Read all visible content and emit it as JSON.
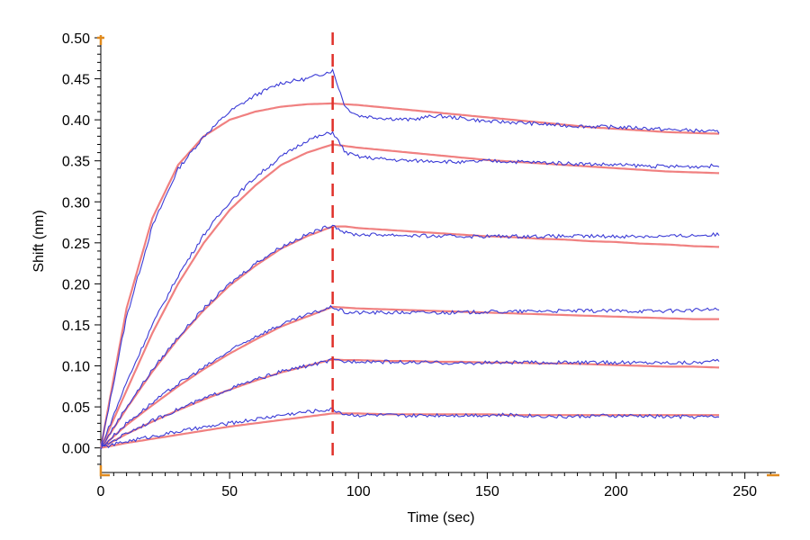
{
  "chart_data": {
    "type": "line",
    "xlabel": "Time (sec)",
    "ylabel": "Shift (nm)",
    "xlim": [
      0,
      262
    ],
    "ylim": [
      -0.03,
      0.5
    ],
    "xticks": [
      0,
      50,
      100,
      150,
      200,
      250
    ],
    "yticks": [
      0.0,
      0.05,
      0.1,
      0.15,
      0.2,
      0.25,
      0.3,
      0.35,
      0.4,
      0.45,
      0.5
    ],
    "ytick_labels": [
      "0.00",
      "0.05",
      "0.10",
      "0.15",
      "0.20",
      "0.25",
      "0.30",
      "0.35",
      "0.40",
      "0.45",
      "0.50"
    ],
    "xtick_labels": [
      "0",
      "50",
      "100",
      "150",
      "200",
      "250"
    ],
    "marker_line_x": 90,
    "grid": false,
    "colors": {
      "measured": "#3b3bd6",
      "fit": "#f08080",
      "marker": "#e0302a",
      "axis_corner": "#e08a1e"
    },
    "series": [
      {
        "x": [
          0,
          10,
          20,
          30,
          40,
          50,
          60,
          70,
          80,
          90,
          95,
          100,
          110,
          120,
          130,
          140,
          150,
          160,
          170,
          180,
          190,
          200,
          210,
          220,
          230,
          240
        ],
        "measured": [
          0.0,
          0.16,
          0.27,
          0.34,
          0.38,
          0.41,
          0.43,
          0.445,
          0.45,
          0.46,
          0.415,
          0.405,
          0.402,
          0.4,
          0.405,
          0.402,
          0.398,
          0.397,
          0.395,
          0.393,
          0.392,
          0.391,
          0.39,
          0.388,
          0.387,
          0.385
        ],
        "fit": [
          0.0,
          0.17,
          0.28,
          0.345,
          0.38,
          0.4,
          0.41,
          0.416,
          0.419,
          0.42,
          0.419,
          0.418,
          0.415,
          0.412,
          0.409,
          0.406,
          0.403,
          0.4,
          0.397,
          0.394,
          0.391,
          0.389,
          0.387,
          0.385,
          0.384,
          0.383
        ]
      },
      {
        "x": [
          0,
          10,
          20,
          30,
          40,
          50,
          60,
          70,
          80,
          90,
          95,
          100,
          110,
          120,
          130,
          140,
          150,
          160,
          170,
          180,
          190,
          200,
          210,
          220,
          230,
          240
        ],
        "measured": [
          0.0,
          0.08,
          0.15,
          0.21,
          0.26,
          0.3,
          0.33,
          0.355,
          0.375,
          0.385,
          0.36,
          0.355,
          0.352,
          0.35,
          0.35,
          0.348,
          0.35,
          0.349,
          0.348,
          0.347,
          0.346,
          0.345,
          0.344,
          0.343,
          0.343,
          0.344
        ],
        "fit": [
          0.0,
          0.07,
          0.14,
          0.2,
          0.25,
          0.29,
          0.32,
          0.345,
          0.36,
          0.37,
          0.368,
          0.366,
          0.363,
          0.36,
          0.357,
          0.354,
          0.351,
          0.349,
          0.347,
          0.345,
          0.343,
          0.341,
          0.339,
          0.337,
          0.336,
          0.335
        ]
      },
      {
        "x": [
          0,
          10,
          20,
          30,
          40,
          50,
          60,
          70,
          80,
          90,
          95,
          100,
          110,
          120,
          130,
          140,
          150,
          160,
          170,
          180,
          190,
          200,
          210,
          220,
          230,
          240
        ],
        "measured": [
          0.0,
          0.05,
          0.095,
          0.135,
          0.17,
          0.2,
          0.225,
          0.245,
          0.26,
          0.272,
          0.262,
          0.26,
          0.26,
          0.259,
          0.258,
          0.258,
          0.258,
          0.258,
          0.258,
          0.258,
          0.258,
          0.258,
          0.258,
          0.258,
          0.259,
          0.26
        ],
        "fit": [
          0.0,
          0.048,
          0.093,
          0.133,
          0.168,
          0.198,
          0.222,
          0.243,
          0.258,
          0.27,
          0.27,
          0.268,
          0.266,
          0.264,
          0.262,
          0.26,
          0.258,
          0.257,
          0.255,
          0.254,
          0.252,
          0.251,
          0.249,
          0.248,
          0.246,
          0.245
        ]
      },
      {
        "x": [
          0,
          10,
          20,
          30,
          40,
          50,
          60,
          70,
          80,
          90,
          95,
          100,
          110,
          120,
          130,
          140,
          150,
          160,
          170,
          180,
          190,
          200,
          210,
          220,
          230,
          240
        ],
        "measured": [
          0.0,
          0.03,
          0.055,
          0.078,
          0.098,
          0.118,
          0.136,
          0.15,
          0.162,
          0.172,
          0.165,
          0.165,
          0.165,
          0.165,
          0.165,
          0.165,
          0.166,
          0.166,
          0.167,
          0.167,
          0.167,
          0.167,
          0.167,
          0.167,
          0.168,
          0.169
        ],
        "fit": [
          0.0,
          0.028,
          0.052,
          0.075,
          0.096,
          0.115,
          0.132,
          0.148,
          0.16,
          0.172,
          0.171,
          0.17,
          0.169,
          0.168,
          0.167,
          0.166,
          0.165,
          0.164,
          0.163,
          0.162,
          0.161,
          0.16,
          0.159,
          0.158,
          0.157,
          0.157
        ]
      },
      {
        "x": [
          0,
          10,
          20,
          30,
          40,
          50,
          60,
          70,
          80,
          90,
          95,
          100,
          110,
          120,
          130,
          140,
          150,
          160,
          170,
          180,
          190,
          200,
          210,
          220,
          230,
          240
        ],
        "measured": [
          0.0,
          0.018,
          0.033,
          0.047,
          0.06,
          0.072,
          0.083,
          0.093,
          0.1,
          0.107,
          0.105,
          0.106,
          0.105,
          0.104,
          0.104,
          0.103,
          0.104,
          0.104,
          0.104,
          0.104,
          0.104,
          0.104,
          0.104,
          0.104,
          0.104,
          0.106
        ],
        "fit": [
          0.0,
          0.017,
          0.032,
          0.046,
          0.059,
          0.071,
          0.082,
          0.092,
          0.1,
          0.108,
          0.107,
          0.107,
          0.106,
          0.106,
          0.105,
          0.105,
          0.104,
          0.104,
          0.103,
          0.103,
          0.102,
          0.101,
          0.1,
          0.099,
          0.099,
          0.098
        ]
      },
      {
        "x": [
          0,
          10,
          20,
          30,
          40,
          50,
          60,
          70,
          80,
          90,
          95,
          100,
          110,
          120,
          130,
          140,
          150,
          160,
          170,
          180,
          190,
          200,
          210,
          220,
          230,
          240
        ],
        "measured": [
          0.0,
          0.008,
          0.014,
          0.02,
          0.025,
          0.03,
          0.035,
          0.04,
          0.044,
          0.047,
          0.041,
          0.04,
          0.04,
          0.039,
          0.04,
          0.04,
          0.04,
          0.04,
          0.039,
          0.038,
          0.039,
          0.039,
          0.039,
          0.038,
          0.038,
          0.038
        ],
        "fit": [
          0.0,
          0.006,
          0.011,
          0.016,
          0.021,
          0.026,
          0.03,
          0.034,
          0.038,
          0.042,
          0.042,
          0.042,
          0.041,
          0.041,
          0.041,
          0.041,
          0.041,
          0.04,
          0.04,
          0.04,
          0.04,
          0.04,
          0.04,
          0.04,
          0.04,
          0.04
        ]
      }
    ]
  }
}
